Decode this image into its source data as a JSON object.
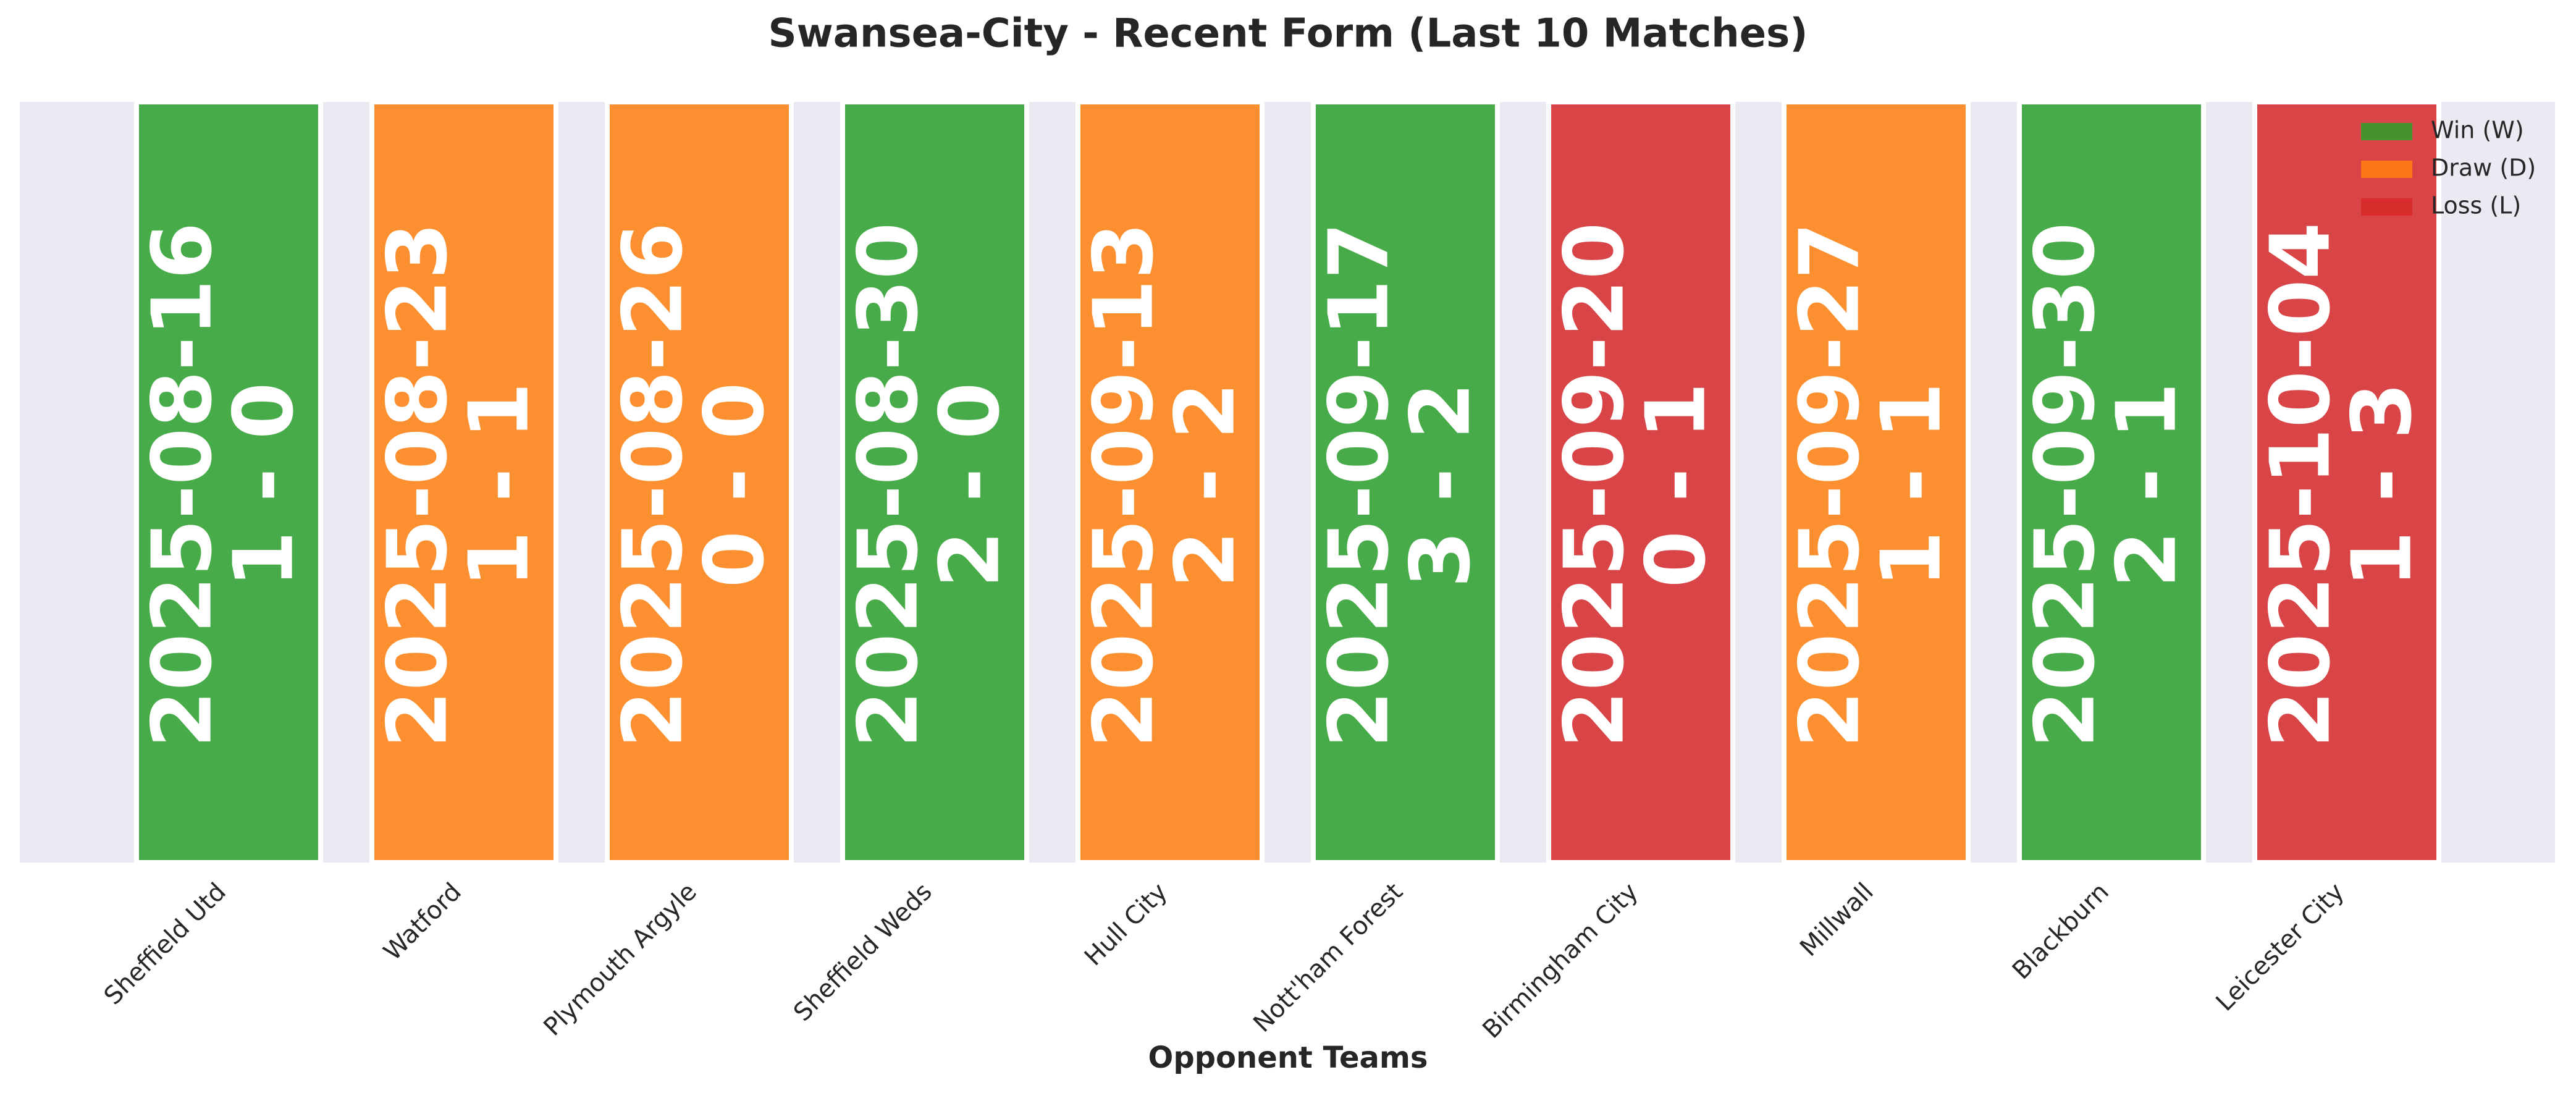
{
  "chart_data": {
    "type": "form",
    "title": "Swansea-City - Recent Form (Last 10 Matches)",
    "xlabel": "Opponent Teams",
    "categories": [
      "Sheffield Utd",
      "Watford",
      "Plymouth Argyle",
      "Sheffield Weds",
      "Hull City",
      "Nott'ham Forest",
      "Birmingham City",
      "Millwall",
      "Blackburn",
      "Leicester City"
    ],
    "dates": [
      "2025-08-16",
      "2025-08-23",
      "2025-08-26",
      "2025-08-30",
      "2025-09-13",
      "2025-09-17",
      "2025-09-20",
      "2025-09-27",
      "2025-09-30",
      "2025-10-04"
    ],
    "scores": [
      "1 - 0",
      "1 - 1",
      "0 - 0",
      "2 - 0",
      "2 - 2",
      "3 - 2",
      "0 - 1",
      "1 - 1",
      "2 - 1",
      "1 - 3"
    ],
    "results": [
      "Win (W)",
      "Draw (D)",
      "Draw (D)",
      "Win (W)",
      "Draw (D)",
      "Win (W)",
      "Loss (L)",
      "Draw (D)",
      "Win (W)",
      "Loss (L)"
    ],
    "legend": [
      {
        "name": "Win (W)",
        "color": "#2ca02c"
      },
      {
        "name": "Draw (D)",
        "color": "#ff7f0e"
      },
      {
        "name": "Loss (L)",
        "color": "#d62728"
      }
    ],
    "legend_loc": "upper right"
  }
}
